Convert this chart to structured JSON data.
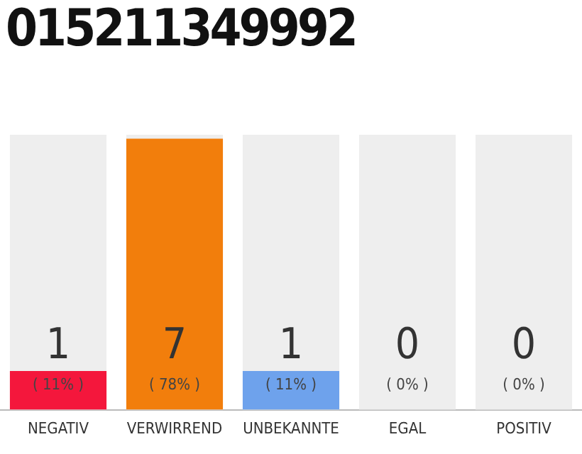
{
  "chart_data": {
    "type": "bar",
    "title": "015211349992",
    "categories": [
      "NEGATIV",
      "VERWIRREND",
      "UNBEKANNTE",
      "EGAL",
      "POSITIV"
    ],
    "values": [
      1,
      7,
      1,
      0,
      0
    ],
    "colors": [
      "#f4173c",
      "#f27e0c",
      "#6ea2ec",
      "#cfcfcf",
      "#cfcfcf"
    ],
    "bands": [
      {
        "axis": "x",
        "from": "NEGATIV",
        "to": "NEGATIV",
        "color": "#eeeeee"
      },
      {
        "axis": "x",
        "from": "VERWIRREND",
        "to": "VERWIRREND",
        "color": "#eeeeee"
      },
      {
        "axis": "x",
        "from": "UNBEKANNTE",
        "to": "UNBEKANNTE",
        "color": "#eeeeee"
      },
      {
        "axis": "x",
        "from": "EGAL",
        "to": "EGAL",
        "color": "#eeeeee"
      },
      {
        "axis": "x",
        "from": "POSITIV",
        "to": "POSITIV",
        "color": "#eeeeee"
      }
    ],
    "ylim": [
      0,
      7.1
    ],
    "tick_labels": "x",
    "grid": false,
    "legend": false,
    "data_labels": true,
    "annotations": [
      "( 11% )",
      "( 78% )",
      "( 11% )",
      "( 0% )",
      "( 0% )"
    ]
  }
}
